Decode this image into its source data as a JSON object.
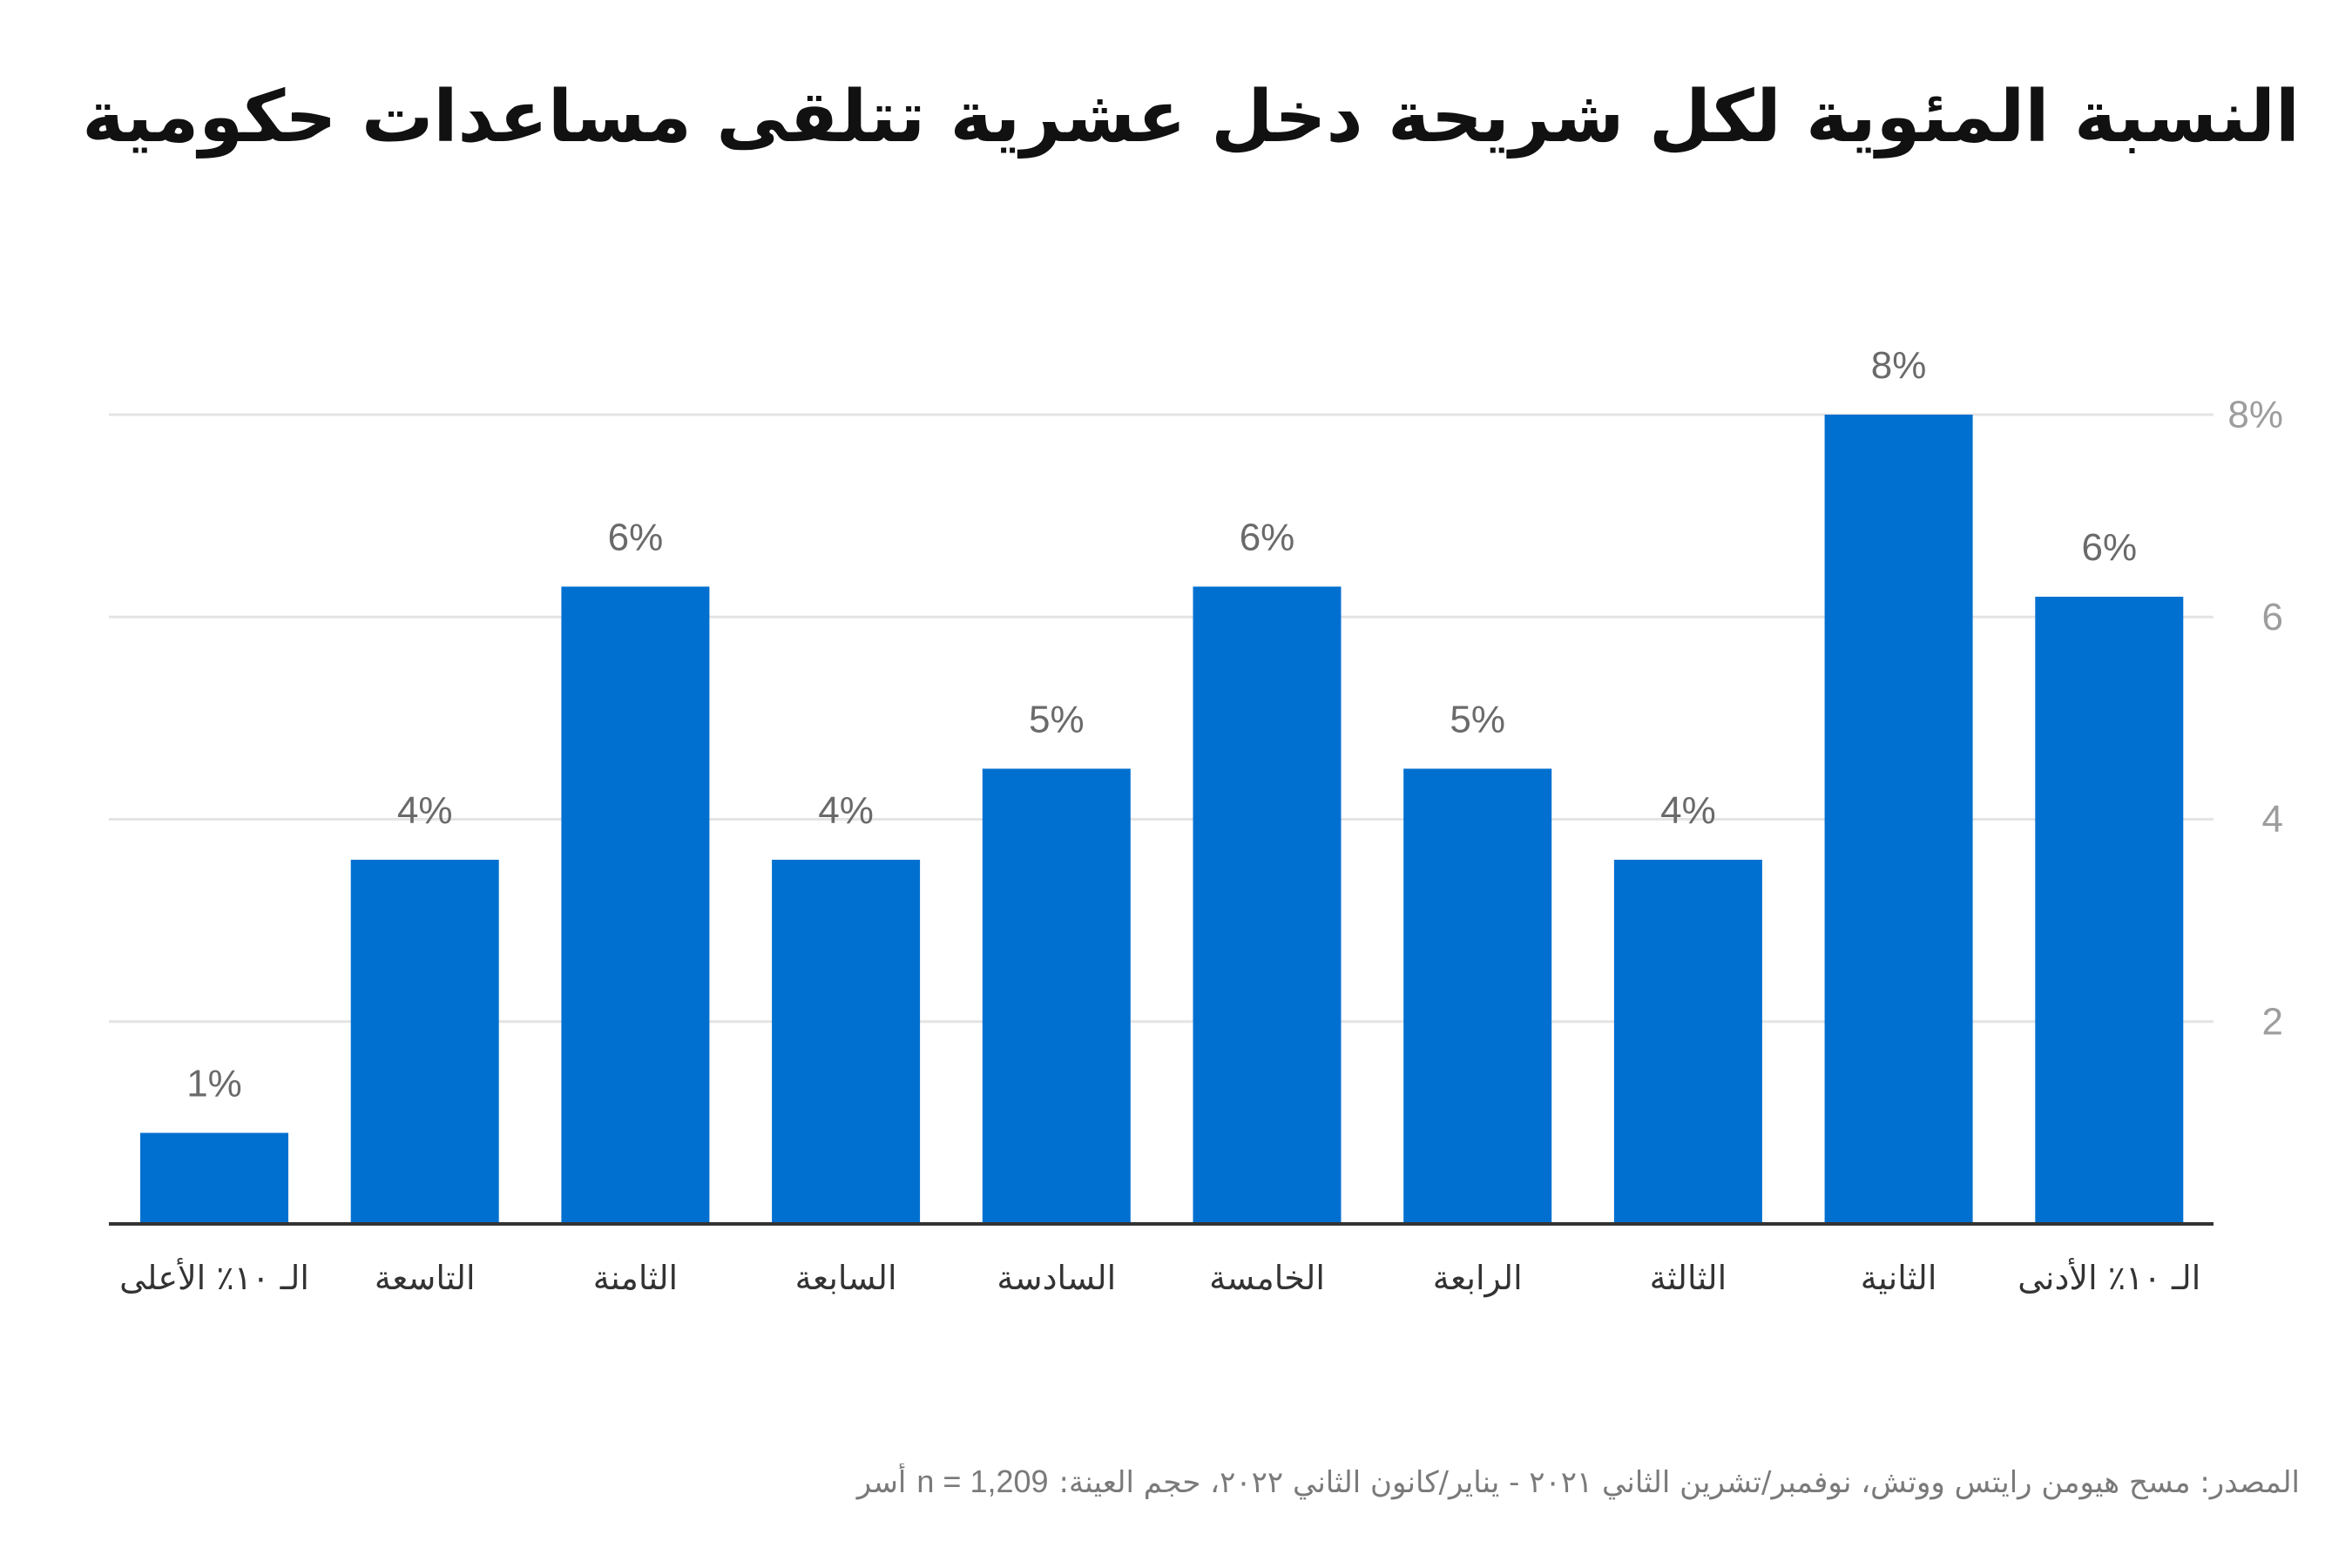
{
  "chart_data": {
    "type": "bar",
    "title": "النسبة المئوية لكل شريحة دخل عشرية تتلقى مساعدات حكومية",
    "categories": [
      "الـ ١٠٪ الأعلى",
      "التاسعة",
      "الثامنة",
      "السابعة",
      "السادسة",
      "الخامسة",
      "الرابعة",
      "الثالثة",
      "الثانية",
      "الـ ١٠٪ الأدنى"
    ],
    "values": [
      0.9,
      3.6,
      6.3,
      3.6,
      4.5,
      6.3,
      4.5,
      3.6,
      8.0,
      6.2
    ],
    "value_labels": [
      "1%",
      "4%",
      "6%",
      "4%",
      "5%",
      "6%",
      "5%",
      "4%",
      "8%",
      "6%"
    ],
    "y_ticks": [
      {
        "value": 2,
        "label": "2"
      },
      {
        "value": 4,
        "label": "4"
      },
      {
        "value": 6,
        "label": "6"
      },
      {
        "value": 8,
        "label": "8%"
      }
    ],
    "ylim": [
      0,
      8
    ],
    "grid": true,
    "bar_color": "#0070d0"
  },
  "source": {
    "text": "المصدر: مسح هيومن رايتس ووتش، نوفمبر/تشرين الثاني ٢٠٢١ - يناير/كانون الثاني ٢٠٢٢، حجم العينة:",
    "sample": "n = 1,209",
    "unit": "أُسر"
  }
}
